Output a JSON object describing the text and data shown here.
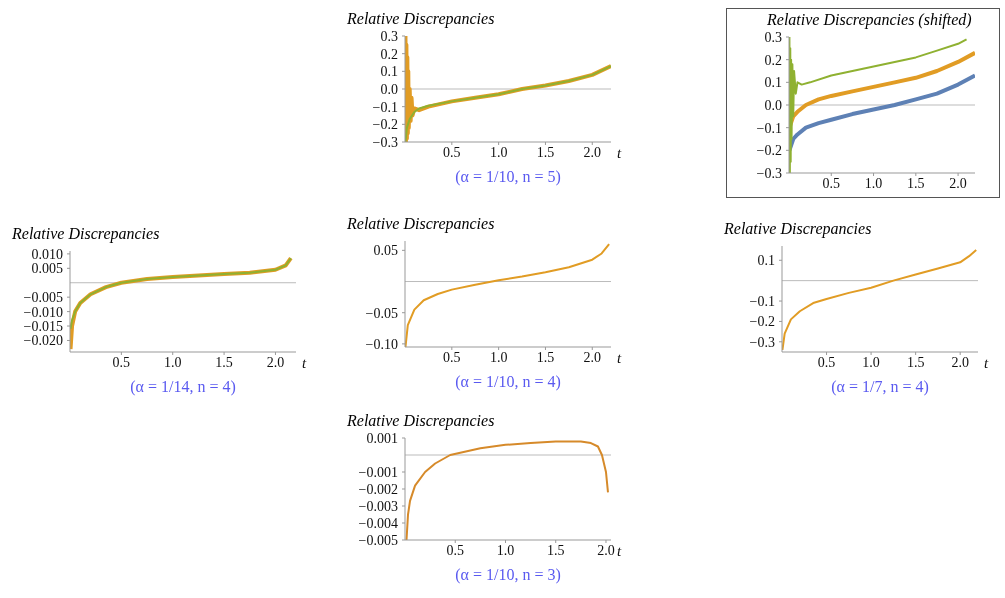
{
  "chart_data": [
    {
      "type": "line",
      "title": "Relative Discrepancies",
      "xlabel": "t",
      "annotations": [
        "(α = 1/10, n = 5)"
      ],
      "xlim": [
        0,
        2.2
      ],
      "xticks": [
        {
          "value": 0.5,
          "label": "0.5"
        },
        {
          "value": 1,
          "label": "1.0"
        },
        {
          "value": 1.5,
          "label": "1.5"
        },
        {
          "value": 2,
          "label": "2.0"
        }
      ],
      "ylim": [
        -0.3,
        0.3
      ],
      "yticks": [
        0.3,
        0.2,
        0.1,
        {
          "value": 0,
          "label": "0.0"
        },
        -0.1,
        -0.2,
        -0.3
      ],
      "marker": "none",
      "line_style": "solid",
      "ref_lines": [
        {
          "axis": "y",
          "value": 0,
          "color": "#bbbbbb"
        }
      ],
      "series": [
        {
          "color": "#e19c24",
          "x": [
            0.005,
            0.01,
            0.015,
            0.02,
            0.025,
            0.03,
            0.035,
            0.04,
            0.05,
            0.06,
            0.07,
            0.08,
            0.1,
            0.15,
            0.25,
            0.5,
            0.75,
            1.0,
            1.25,
            1.5,
            1.75,
            2.0,
            2.2
          ],
          "values": [
            0.3,
            -0.3,
            0.25,
            -0.28,
            0.18,
            -0.25,
            0.1,
            -0.22,
            0.0,
            -0.18,
            -0.05,
            -0.15,
            -0.11,
            -0.12,
            -0.1,
            -0.07,
            -0.05,
            -0.03,
            0.0,
            0.02,
            0.045,
            0.08,
            0.13
          ]
        },
        {
          "color": "#8fb131",
          "x": [
            0.005,
            0.02,
            0.05,
            0.1,
            0.15,
            0.25,
            0.5,
            0.75,
            1.0,
            1.25,
            1.5,
            1.75,
            2.0,
            2.2
          ],
          "values": [
            -0.3,
            -0.22,
            -0.17,
            -0.13,
            -0.11,
            -0.095,
            -0.07,
            -0.05,
            -0.03,
            0.0,
            0.02,
            0.045,
            0.08,
            0.13
          ]
        }
      ]
    },
    {
      "type": "line",
      "title": "Relative Discrepancies (shifted)",
      "xlim": [
        0,
        2.2
      ],
      "xticks": [
        {
          "value": 0.5,
          "label": "0.5"
        },
        {
          "value": 1,
          "label": "1.0"
        },
        {
          "value": 1.5,
          "label": "1.5"
        },
        {
          "value": 2,
          "label": "2.0"
        }
      ],
      "ylim": [
        -0.3,
        0.3
      ],
      "yticks": [
        0.3,
        0.2,
        0.1,
        {
          "value": 0,
          "label": "0.0"
        },
        -0.1,
        -0.2,
        -0.3
      ],
      "marker": "none",
      "line_style": "solid",
      "ref_lines": [
        {
          "axis": "y",
          "value": 0,
          "color": "#bbbbbb"
        }
      ],
      "series": [
        {
          "color": "#5e81b5",
          "x": [
            0.005,
            0.05,
            0.1,
            0.2,
            0.35,
            0.5,
            0.75,
            1.0,
            1.25,
            1.5,
            1.75,
            2.0,
            2.2
          ],
          "values": [
            -0.2,
            -0.15,
            -0.13,
            -0.1,
            -0.08,
            -0.065,
            -0.04,
            -0.02,
            0.0,
            0.025,
            0.05,
            0.09,
            0.13
          ]
        },
        {
          "color": "#e19c24",
          "x": [
            0.005,
            0.05,
            0.1,
            0.2,
            0.35,
            0.5,
            0.75,
            1.0,
            1.25,
            1.5,
            1.75,
            2.0,
            2.2
          ],
          "values": [
            -0.1,
            -0.05,
            -0.03,
            0.0,
            0.025,
            0.04,
            0.06,
            0.08,
            0.1,
            0.12,
            0.15,
            0.19,
            0.23
          ]
        },
        {
          "color": "#8fb131",
          "x": [
            0.005,
            0.01,
            0.015,
            0.02,
            0.025,
            0.03,
            0.04,
            0.05,
            0.06,
            0.08,
            0.1,
            0.15,
            0.25,
            0.5,
            0.75,
            1.0,
            1.25,
            1.5,
            1.75,
            2.0,
            2.1
          ],
          "values": [
            0.3,
            -0.3,
            0.25,
            -0.25,
            0.2,
            -0.15,
            0.18,
            -0.05,
            0.15,
            0.05,
            0.1,
            0.09,
            0.1,
            0.13,
            0.15,
            0.17,
            0.19,
            0.21,
            0.24,
            0.27,
            0.29
          ]
        }
      ]
    },
    {
      "type": "line",
      "title": "Relative Discrepancies",
      "xlabel": "t",
      "annotations": [
        "(α = 1/14, n = 4)"
      ],
      "xlim": [
        0,
        2.2
      ],
      "xticks": [
        {
          "value": 0.5,
          "label": "0.5"
        },
        {
          "value": 1,
          "label": "1.0"
        },
        {
          "value": 1.5,
          "label": "1.5"
        },
        {
          "value": 2,
          "label": "2.0"
        }
      ],
      "ylim": [
        -0.024,
        0.011
      ],
      "yticks": [
        {
          "value": 0.01,
          "label": "0.010"
        },
        0.005,
        -0.005,
        {
          "value": -0.01,
          "label": "−0.010"
        },
        -0.015,
        {
          "value": -0.02,
          "label": "−0.020"
        }
      ],
      "marker": "none",
      "line_style": "solid",
      "ref_lines": [
        {
          "axis": "y",
          "value": 0,
          "color": "#bbbbbb"
        }
      ],
      "series": [
        {
          "color": "#e19c24",
          "x": [
            0.005,
            0.02,
            0.05,
            0.1,
            0.2,
            0.35,
            0.5,
            0.75,
            1.0,
            1.25,
            1.5,
            1.75,
            2.0,
            2.1,
            2.15
          ],
          "values": [
            -0.023,
            -0.015,
            -0.01,
            -0.007,
            -0.004,
            -0.0015,
            0.0,
            0.0013,
            0.002,
            0.0025,
            0.003,
            0.0035,
            0.0045,
            0.006,
            0.0085
          ]
        },
        {
          "color": "#8fb131",
          "x": [
            0.005,
            0.02,
            0.05,
            0.1,
            0.2,
            0.35,
            0.5,
            0.75,
            1.0,
            1.25,
            1.5,
            1.75,
            2.0,
            2.1,
            2.15
          ],
          "values": [
            -0.016,
            -0.013,
            -0.01,
            -0.007,
            -0.004,
            -0.0015,
            0.0,
            0.0013,
            0.002,
            0.0025,
            0.003,
            0.0035,
            0.0045,
            0.006,
            0.0085
          ]
        }
      ]
    },
    {
      "type": "line",
      "title": "Relative Discrepancies",
      "xlabel": "t",
      "annotations": [
        "(α = 1/10, n = 4)"
      ],
      "xlim": [
        0,
        2.2
      ],
      "xticks": [
        {
          "value": 0.5,
          "label": "0.5"
        },
        {
          "value": 1,
          "label": "1.0"
        },
        {
          "value": 1.5,
          "label": "1.5"
        },
        {
          "value": 2,
          "label": "2.0"
        }
      ],
      "ylim": [
        -0.105,
        0.065
      ],
      "yticks": [
        0.05,
        -0.05,
        {
          "value": -0.1,
          "label": "−0.10"
        }
      ],
      "marker": "none",
      "line_style": "solid",
      "ref_lines": [
        {
          "axis": "y",
          "value": 0,
          "color": "#bbbbbb"
        }
      ],
      "series": [
        {
          "color": "#e19c24",
          "x": [
            0.005,
            0.03,
            0.1,
            0.2,
            0.35,
            0.5,
            0.75,
            1.0,
            1.25,
            1.5,
            1.75,
            2.0,
            2.1,
            2.18
          ],
          "values": [
            -0.105,
            -0.07,
            -0.045,
            -0.03,
            -0.02,
            -0.013,
            -0.005,
            0.002,
            0.008,
            0.015,
            0.023,
            0.035,
            0.045,
            0.06
          ]
        }
      ]
    },
    {
      "type": "line",
      "title": "Relative Discrepancies",
      "xlabel": "t",
      "annotations": [
        "(α = 1/7, n = 4)"
      ],
      "xlim": [
        0,
        2.2
      ],
      "xticks": [
        {
          "value": 0.5,
          "label": "0.5"
        },
        {
          "value": 1,
          "label": "1.0"
        },
        {
          "value": 1.5,
          "label": "1.5"
        },
        {
          "value": 2,
          "label": "2.0"
        }
      ],
      "ylim": [
        -0.35,
        0.17
      ],
      "yticks": [
        0.1,
        -0.1,
        -0.2,
        -0.3
      ],
      "marker": "none",
      "line_style": "solid",
      "ref_lines": [
        {
          "axis": "y",
          "value": 0,
          "color": "#bbbbbb"
        }
      ],
      "series": [
        {
          "color": "#e19c24",
          "x": [
            0.005,
            0.03,
            0.1,
            0.2,
            0.35,
            0.5,
            0.75,
            1.0,
            1.25,
            1.5,
            1.75,
            2.0,
            2.1,
            2.18
          ],
          "values": [
            -0.34,
            -0.26,
            -0.19,
            -0.15,
            -0.11,
            -0.09,
            -0.06,
            -0.035,
            0.0,
            0.03,
            0.06,
            0.09,
            0.12,
            0.15
          ]
        }
      ]
    },
    {
      "type": "line",
      "title": "Relative Discrepancies",
      "xlabel": "t",
      "annotations": [
        "(α = 1/10, n = 3)"
      ],
      "xlim": [
        0,
        2.05
      ],
      "xticks": [
        {
          "value": 0.5,
          "label": "0.5"
        },
        {
          "value": 1,
          "label": "1.0"
        },
        {
          "value": 1.5,
          "label": "1.5"
        },
        {
          "value": 2,
          "label": "2.0"
        }
      ],
      "ylim": [
        -0.005,
        0.001
      ],
      "yticks": [
        0.001,
        -0.001,
        -0.002,
        -0.003,
        -0.004,
        -0.005
      ],
      "marker": "none",
      "line_style": "solid",
      "ref_lines": [
        {
          "axis": "y",
          "value": 0,
          "color": "#bbbbbb"
        }
      ],
      "series": [
        {
          "color": "#d68a2a",
          "x": [
            0.015,
            0.03,
            0.05,
            0.1,
            0.2,
            0.3,
            0.45,
            0.75,
            1.0,
            1.25,
            1.5,
            1.75,
            1.85,
            1.92,
            1.96,
            2.0,
            2.02
          ],
          "values": [
            -0.005,
            -0.0035,
            -0.0027,
            -0.0018,
            -0.001,
            -0.0005,
            0.0,
            0.0004,
            0.0006,
            0.0007,
            0.0008,
            0.0008,
            0.0007,
            0.0005,
            0.0,
            -0.001,
            -0.0022
          ]
        }
      ]
    }
  ]
}
